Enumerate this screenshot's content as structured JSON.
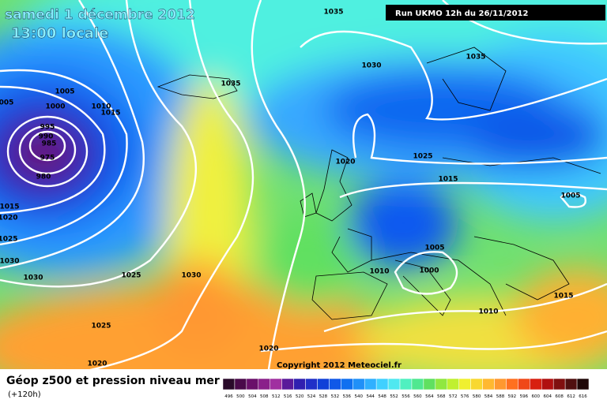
{
  "header": {
    "date": "samedi 1 décembre 2012",
    "time": "13:00 locale",
    "run_info": "Run UKMO 12h du 26/11/2012"
  },
  "map": {
    "copyright": "Copyright 2012 Meteociel.fr",
    "isobar_labels": [
      "1035",
      "1005",
      "005",
      "1000",
      "1010",
      "1015",
      "1035",
      "1030",
      "1035",
      "995",
      "990",
      "985",
      "975",
      "980",
      "1020",
      "1025",
      "1015",
      "1005",
      "1015",
      "1020",
      "1025",
      "1030",
      "1030",
      "1025",
      "1030",
      "1005",
      "1010",
      "1000",
      "1015",
      "1010",
      "1025",
      "1020",
      "1020"
    ]
  },
  "footer": {
    "title": "Géop z500 et pression niveau mer",
    "lead": "(+120h)",
    "colorbar": {
      "labels": [
        "496",
        "500",
        "504",
        "508",
        "512",
        "516",
        "520",
        "524",
        "528",
        "532",
        "536",
        "540",
        "544",
        "548",
        "552",
        "556",
        "560",
        "564",
        "568",
        "572",
        "576",
        "580",
        "584",
        "588",
        "592",
        "596",
        "600",
        "604",
        "608",
        "612",
        "616"
      ],
      "colors": [
        "#2a0a2a",
        "#4a0a4a",
        "#6a106a",
        "#8a208a",
        "#a030a0",
        "#5a1a9a",
        "#3020b0",
        "#2030c8",
        "#1040d8",
        "#1058e8",
        "#1070f0",
        "#2090f8",
        "#30b0ff",
        "#40d0ff",
        "#50e8f0",
        "#50f0c0",
        "#50e890",
        "#60e060",
        "#90e840",
        "#c0f030",
        "#f0f030",
        "#f8d830",
        "#ffb830",
        "#ff9830",
        "#ff7020",
        "#f04818",
        "#d82010",
        "#b01010",
        "#801010",
        "#501010",
        "#200808"
      ]
    }
  }
}
